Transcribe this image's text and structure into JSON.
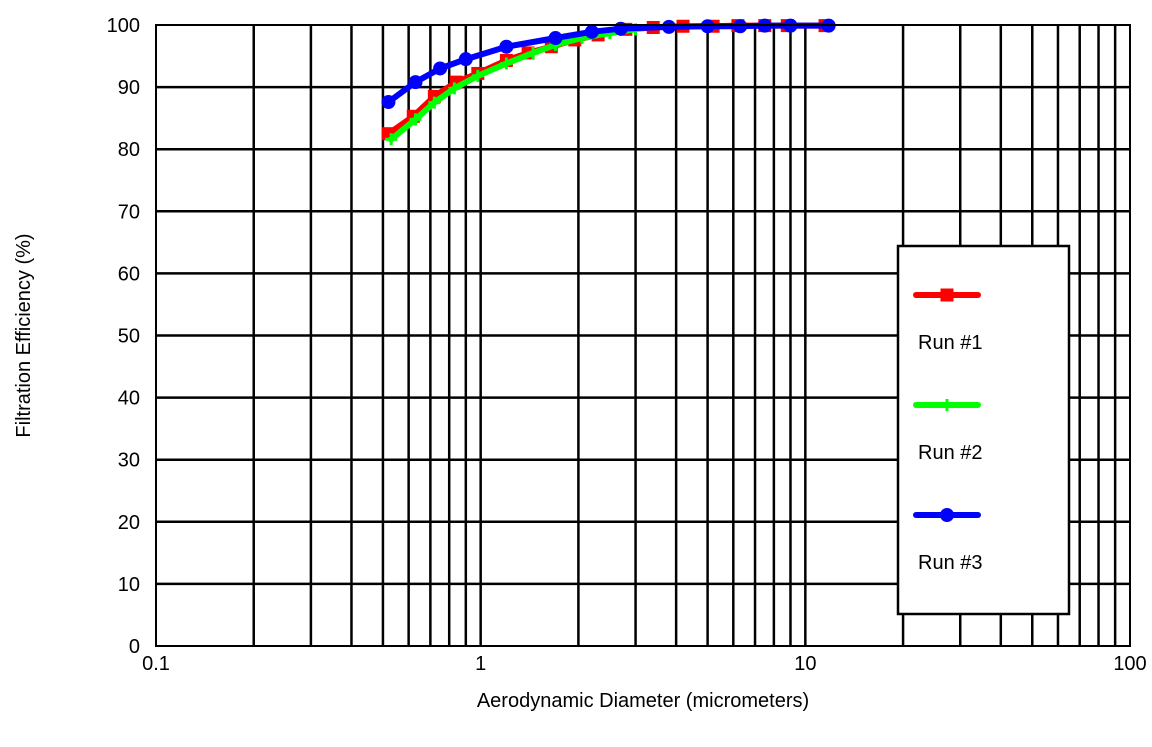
{
  "chart_data": {
    "type": "line",
    "xlabel": "Aerodynamic Diameter (micrometers)",
    "ylabel": "Filtration Efficiency (%)",
    "xscale": "log",
    "xlim": [
      0.1,
      100
    ],
    "ylim": [
      0,
      100
    ],
    "x_ticks": [
      "0.1",
      "1",
      "10",
      "100"
    ],
    "y_ticks": [
      "0",
      "10",
      "20",
      "30",
      "40",
      "50",
      "60",
      "70",
      "80",
      "90",
      "100"
    ],
    "grid": true,
    "legend_position": "right",
    "series": [
      {
        "name": "Run #1",
        "color": "#ff0000",
        "marker": "square",
        "points": [
          [
            0.52,
            82.5
          ],
          [
            0.62,
            85.3
          ],
          [
            0.72,
            88.5
          ],
          [
            0.84,
            90.8
          ],
          [
            0.98,
            92.2
          ],
          [
            1.2,
            94.3
          ],
          [
            1.4,
            95.5
          ],
          [
            1.65,
            96.5
          ],
          [
            1.95,
            97.6
          ],
          [
            2.3,
            98.4
          ],
          [
            2.8,
            99.3
          ],
          [
            3.4,
            99.6
          ],
          [
            4.2,
            99.8
          ],
          [
            5.2,
            99.8
          ],
          [
            6.2,
            99.9
          ],
          [
            7.5,
            99.9
          ],
          [
            8.8,
            99.9
          ],
          [
            11.5,
            99.9
          ]
        ]
      },
      {
        "name": "Run #2",
        "color": "#00ff00",
        "marker": "plus",
        "points": [
          [
            0.53,
            81.6
          ],
          [
            0.63,
            84.8
          ],
          [
            0.72,
            87.5
          ],
          [
            0.83,
            89.8
          ],
          [
            0.98,
            91.8
          ],
          [
            1.2,
            93.8
          ],
          [
            1.45,
            95.5
          ],
          [
            1.7,
            96.8
          ],
          [
            2.05,
            97.9
          ],
          [
            2.5,
            98.7
          ],
          [
            3.0,
            99.3
          ]
        ]
      },
      {
        "name": "Run #3",
        "color": "#0000ff",
        "marker": "circle",
        "points": [
          [
            0.52,
            87.6
          ],
          [
            0.63,
            90.8
          ],
          [
            0.75,
            93.0
          ],
          [
            0.9,
            94.5
          ],
          [
            1.2,
            96.5
          ],
          [
            1.7,
            97.9
          ],
          [
            2.2,
            98.9
          ],
          [
            2.7,
            99.4
          ],
          [
            3.8,
            99.7
          ],
          [
            5.0,
            99.8
          ],
          [
            6.3,
            99.8
          ],
          [
            7.5,
            99.9
          ],
          [
            9.0,
            99.9
          ],
          [
            11.8,
            99.9
          ]
        ]
      }
    ]
  }
}
